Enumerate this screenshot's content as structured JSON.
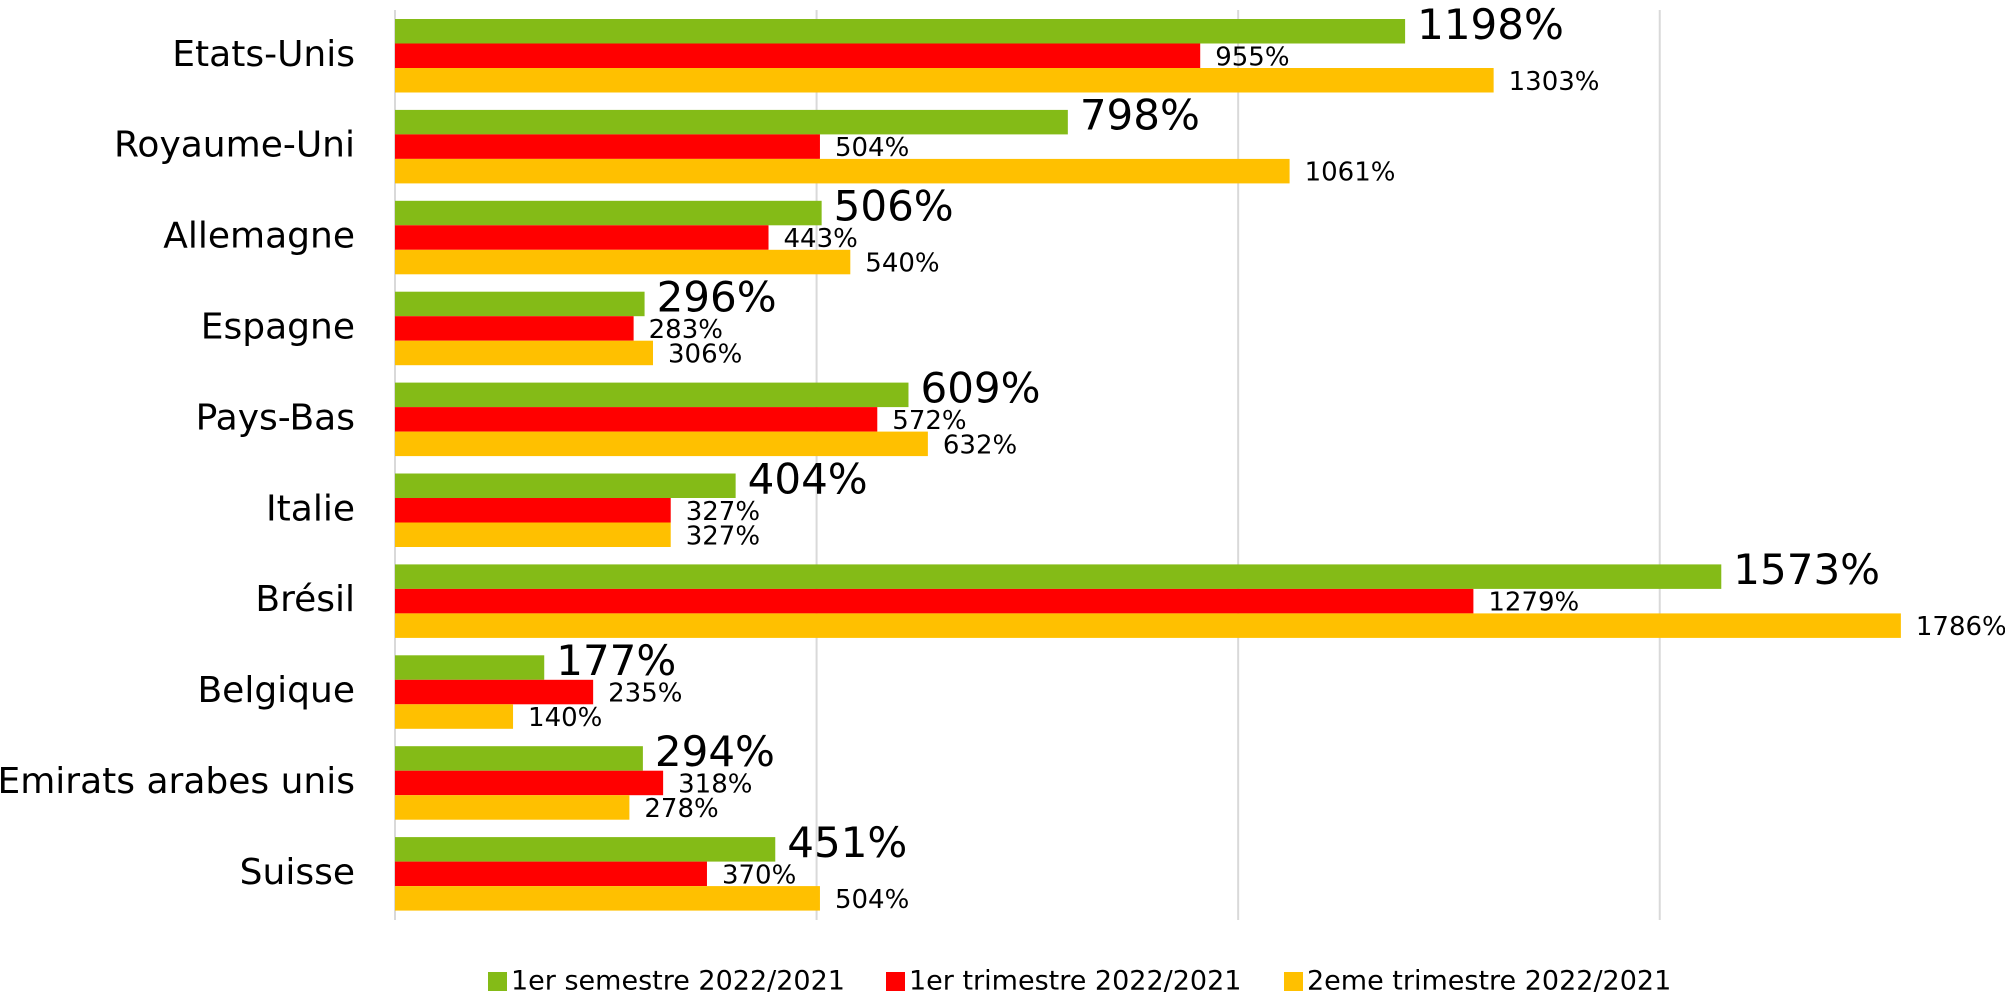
{
  "chart_data": {
    "type": "hbar",
    "categories": [
      "Etats-Unis",
      "Royaume-Uni",
      "Allemagne",
      "Espagne",
      "Pays-Bas",
      "Italie",
      "Brésil",
      "Belgique",
      "Emirats arabes unis",
      "Suisse"
    ],
    "series": [
      {
        "name": "1er semestre 2022/2021",
        "color": "#84bb17",
        "values": [
          1198,
          798,
          506,
          296,
          609,
          404,
          1573,
          177,
          294,
          451
        ],
        "value_labels": [
          "1198%",
          "798%",
          "506%",
          "296%",
          "609%",
          "404%",
          "1573%",
          "177%",
          "294%",
          "451%"
        ]
      },
      {
        "name": "1er trimestre 2022/2021",
        "color": "#ff0000",
        "values": [
          955,
          504,
          443,
          283,
          572,
          327,
          1279,
          235,
          318,
          370
        ],
        "value_labels": [
          "955%",
          "504%",
          "443%",
          "283%",
          "572%",
          "327%",
          "1279%",
          "235%",
          "318%",
          "370%"
        ]
      },
      {
        "name": "2eme trimestre 2022/2021",
        "color": "#ffc000",
        "values": [
          1303,
          1061,
          540,
          306,
          632,
          327,
          1786,
          140,
          278,
          504
        ],
        "value_labels": [
          "1303%",
          "1061%",
          "540%",
          "306%",
          "632%",
          "327%",
          "1786%",
          "140%",
          "278%",
          "504%"
        ]
      }
    ],
    "xlim": [
      0,
      1900
    ],
    "xticks": [
      0,
      500,
      1000,
      1500
    ],
    "grid": true,
    "legend": "bottom"
  }
}
